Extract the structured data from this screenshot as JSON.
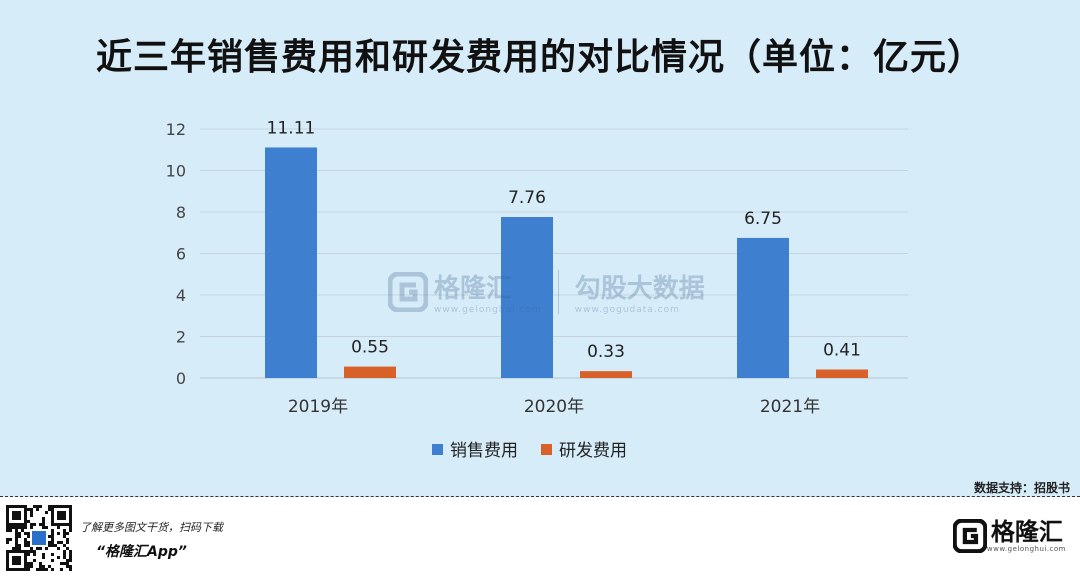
{
  "title": "近三年销售费用和研发费用的对比情况（单位：亿元）",
  "source": "数据支持：招股书",
  "footer": {
    "line1": "了解更多图文干货，扫码下载",
    "line2": "“格隆汇App”",
    "brand_name": "格隆汇",
    "brand_url": "www.gelonghui.com"
  },
  "watermark": {
    "brand_a": "格隆汇",
    "brand_a_url": "www.gelonghui.com",
    "brand_b": "勾股大数据",
    "brand_b_url": "www.gogudata.com"
  },
  "colors": {
    "sales": "#3f7fcf",
    "rd": "#d8612a",
    "background": "#d7ecf9"
  },
  "chart_data": {
    "type": "bar",
    "title": "近三年销售费用和研发费用的对比情况（单位：亿元）",
    "categories": [
      "2019年",
      "2020年",
      "2021年"
    ],
    "series": [
      {
        "name": "销售费用",
        "values": [
          11.11,
          7.76,
          6.75
        ],
        "labels": [
          "11.11",
          "7.76",
          "6.75"
        ]
      },
      {
        "name": "研发费用",
        "values": [
          0.55,
          0.33,
          0.41
        ],
        "labels": [
          "0.55",
          "0.33",
          "0.41"
        ]
      }
    ],
    "yticks": [
      "0",
      "2",
      "4",
      "6",
      "8",
      "10",
      "12"
    ],
    "ylim": [
      0,
      12
    ],
    "grid": true,
    "legend": "bottom-center"
  }
}
